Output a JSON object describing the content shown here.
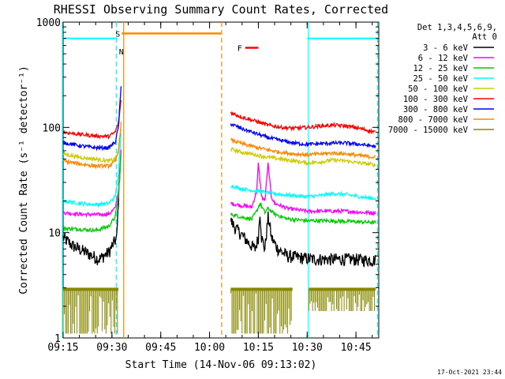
{
  "chart_data": {
    "type": "line",
    "title": "RHESSI Observing Summary Count Rates, Corrected",
    "xlabel": "Start Time (14-Nov-06 09:13:02)",
    "ylabel": "Corrected Count Rate (s⁻¹ detector⁻¹)",
    "y_scale": "log",
    "ylim": [
      1,
      1000
    ],
    "xlim_minutes": [
      555,
      652
    ],
    "x_ticks": [
      {
        "t": 555,
        "label": "09:15"
      },
      {
        "t": 570,
        "label": "09:30"
      },
      {
        "t": 585,
        "label": "09:45"
      },
      {
        "t": 600,
        "label": "10:00"
      },
      {
        "t": 615,
        "label": "10:15"
      },
      {
        "t": 630,
        "label": "10:30"
      },
      {
        "t": 645,
        "label": "10:45"
      }
    ],
    "y_ticks": [
      {
        "v": 1,
        "label": "1"
      },
      {
        "v": 10,
        "label": "10"
      },
      {
        "v": 100,
        "label": "100"
      },
      {
        "v": 1000,
        "label": "1000"
      }
    ],
    "legend_header": [
      "Det 1,3,4,5,6,9,",
      "Att 0"
    ],
    "legend_position": "right",
    "series": [
      {
        "name": "3 - 6 keV",
        "color": "#000000",
        "segments": [
          {
            "x": [
              555,
              558,
              562,
              566,
              569,
              571.5,
              572.5
            ],
            "y": [
              9.0,
              7.5,
              6.5,
              5.6,
              6.5,
              9,
              45
            ]
          },
          {
            "x": [
              606.5,
              608,
              610,
              612,
              614,
              615,
              615.5,
              616,
              617,
              618,
              618.5,
              619,
              621,
              624,
              628,
              632,
              638,
              644,
              648,
              651
            ],
            "y": [
              13,
              11,
              9.5,
              8,
              7,
              9,
              16,
              9,
              7,
              14,
              12,
              9,
              7,
              6,
              5.8,
              5.6,
              5.6,
              5.6,
              5.5,
              5.5
            ]
          }
        ]
      },
      {
        "name": "6 - 12 keV",
        "color": "#ff00ff",
        "segments": [
          {
            "x": [
              555,
              560,
              565,
              569,
              571,
              572,
              572.8
            ],
            "y": [
              15.5,
              15,
              14.8,
              15,
              17,
              25,
              60
            ]
          },
          {
            "x": [
              606.5,
              610,
              613,
              614.5,
              615,
              616,
              617,
              618,
              619,
              620,
              624,
              630,
              636,
              642,
              648,
              651
            ],
            "y": [
              19,
              18,
              17.5,
              25,
              45,
              22,
              20,
              45,
              22,
              19,
              17,
              16,
              16,
              16,
              15.5,
              15.5
            ]
          }
        ]
      },
      {
        "name": "12 - 25 keV",
        "color": "#00cc00",
        "segments": [
          {
            "x": [
              555,
              560,
              565,
              569,
              571,
              572,
              572.8
            ],
            "y": [
              11,
              10.8,
              10.5,
              11.5,
              14,
              22,
              55
            ]
          },
          {
            "x": [
              606.5,
              610,
              613,
              614.5,
              615.5,
              617,
              618,
              620,
              624,
              630,
              636,
              642,
              648,
              651
            ],
            "y": [
              15,
              14,
              13.5,
              16,
              19,
              15.5,
              17,
              15,
              13.5,
              13,
              13,
              12.8,
              12.6,
              12.5
            ]
          }
        ]
      },
      {
        "name": "25 - 50 keV",
        "color": "#00ffff",
        "segments": [
          {
            "x": [
              555,
              560,
              565,
              569,
              571,
              572,
              572.8
            ],
            "y": [
              20,
              19,
              18.5,
              19,
              22,
              35,
              90
            ]
          },
          {
            "x": [
              606.5,
              610,
              614,
              618,
              622,
              626,
              630,
              634,
              638,
              642,
              646,
              651
            ],
            "y": [
              28,
              26,
              25,
              24,
              23,
              22.5,
              22,
              22.5,
              23.5,
              23,
              22,
              21
            ]
          }
        ]
      },
      {
        "name": "50 - 100 keV",
        "color": "#cccc00",
        "segments": [
          {
            "x": [
              555,
              560,
              565,
              569,
              571,
              572,
              572.8
            ],
            "y": [
              56,
              52,
              50,
              48,
              50,
              60,
              100
            ]
          },
          {
            "x": [
              606.5,
              610,
              614,
              618,
              622,
              626,
              630,
              634,
              638,
              642,
              646,
              651
            ],
            "y": [
              62,
              58,
              55,
              52,
              50,
              48,
              46,
              47,
              49,
              48,
              46,
              44
            ]
          }
        ]
      },
      {
        "name": "100 - 300 keV",
        "color": "#ff0000",
        "segments": [
          {
            "x": [
              555,
              560,
              565,
              569,
              571,
              572,
              572.8
            ],
            "y": [
              90,
              86,
              83,
              82,
              90,
              110,
              180
            ]
          },
          {
            "x": [
              606.5,
              610,
              614,
              618,
              622,
              626,
              630,
              634,
              638,
              642,
              646,
              651
            ],
            "y": [
              138,
              125,
              115,
              105,
              100,
              98,
              100,
              103,
              105,
              103,
              98,
              90
            ]
          }
        ]
      },
      {
        "name": "300 - 800 keV",
        "color": "#0000ff",
        "segments": [
          {
            "x": [
              555,
              560,
              565,
              569,
              571,
              572,
              572.8
            ],
            "y": [
              72,
              67,
              64,
              64,
              72,
              100,
              240
            ]
          },
          {
            "x": [
              606.5,
              610,
              614,
              618,
              622,
              626,
              630,
              634,
              638,
              642,
              646,
              651
            ],
            "y": [
              108,
              97,
              88,
              80,
              75,
              71,
              69,
              70,
              71,
              71,
              69,
              66
            ]
          }
        ]
      },
      {
        "name": "800 - 7000 keV",
        "color": "#ff8800",
        "segments": [
          {
            "x": [
              555,
              560,
              565,
              569,
              571,
              572,
              572.8
            ],
            "y": [
              48,
              45,
              43,
              43,
              47,
              60,
              110
            ]
          },
          {
            "x": [
              606.5,
              610,
              614,
              618,
              622,
              626,
              630,
              634,
              638,
              642,
              646,
              651
            ],
            "y": [
              76,
              70,
              65,
              61,
              58,
              56,
              55,
              56,
              57,
              56,
              54,
              52
            ]
          }
        ]
      },
      {
        "name": "7000 - 15000 keV",
        "color": "#888800",
        "style": "band",
        "segments": [
          {
            "x": [
              555,
              572
            ],
            "y": [
              1.1,
              3.0
            ]
          },
          {
            "x": [
              606.5,
              625.5
            ],
            "y": [
              1.1,
              3.0
            ]
          },
          {
            "x": [
              630.5,
              651
            ],
            "y": [
              1.8,
              3.0
            ]
          }
        ]
      }
    ],
    "flags": {
      "saa": [
        {
          "x": [
            555,
            571.5
          ],
          "y": 700
        },
        {
          "x": [
            630,
            651.5
          ],
          "y": 700
        }
      ],
      "night": [
        {
          "x": [
            573,
            603.5
          ],
          "y": 780
        }
      ],
      "flare": [
        {
          "x": [
            611,
            615
          ],
          "y": 570
        }
      ],
      "markers": [
        {
          "t": 571.8,
          "label": "S",
          "color": "#00aa00",
          "value": 780
        },
        {
          "t": 572.9,
          "label": "N",
          "color": "#0099ff",
          "value": 530
        },
        {
          "t": 609.3,
          "label": "F",
          "color": "#ff0000",
          "value": 570
        }
      ],
      "vlines": [
        {
          "t": 554.8,
          "color": "#00ffff",
          "dash": false
        },
        {
          "t": 571.4,
          "color": "#00ffff",
          "dash": true
        },
        {
          "t": 573.6,
          "color": "#ff8800",
          "dash": false
        },
        {
          "t": 603.7,
          "color": "#ff8800",
          "dash": true
        },
        {
          "t": 630.4,
          "color": "#00ffff",
          "dash": false
        },
        {
          "t": 651.6,
          "color": "#00ffff",
          "dash": true
        }
      ]
    }
  },
  "footer": {
    "date": "17-Oct-2021 23:44"
  }
}
